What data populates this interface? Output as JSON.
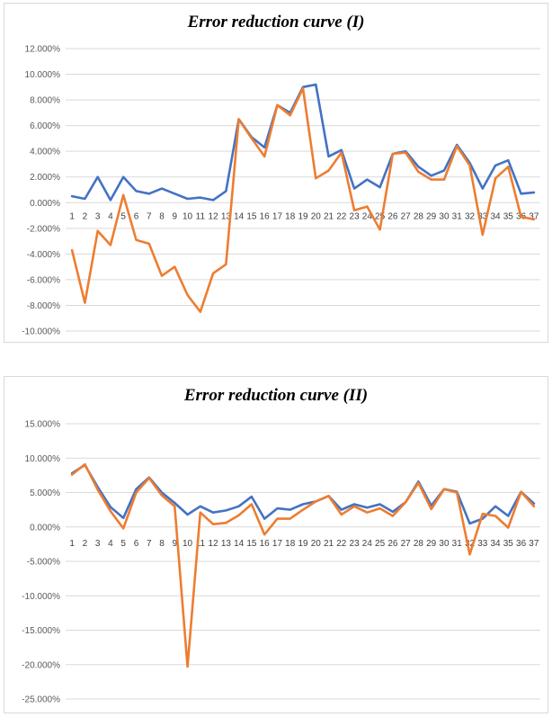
{
  "chart_data": [
    {
      "type": "line",
      "title": "Error reduction curve (I)",
      "ylim": [
        -0.1,
        0.12
      ],
      "ytick_step": 0.02,
      "ytick_labels": [
        "12.000%",
        "10.000%",
        "8.000%",
        "6.000%",
        "4.000%",
        "2.000%",
        "0.000%",
        "-2.000%",
        "-4.000%",
        "-6.000%",
        "-8.000%",
        "-10.000%"
      ],
      "categories": [
        "1",
        "2",
        "3",
        "4",
        "5",
        "6",
        "7",
        "8",
        "9",
        "10",
        "11",
        "12",
        "13",
        "14",
        "15",
        "16",
        "17",
        "18",
        "19",
        "20",
        "21",
        "22",
        "23",
        "24",
        "25",
        "26",
        "27",
        "28",
        "29",
        "30",
        "31",
        "32",
        "33",
        "34",
        "35",
        "36",
        "37"
      ],
      "grid": true,
      "legend": "none",
      "series": [
        {
          "color": "#4472C4",
          "values": [
            0.005,
            0.003,
            0.02,
            0.002,
            0.02,
            0.009,
            0.007,
            0.011,
            0.007,
            0.003,
            0.004,
            0.002,
            0.009,
            0.065,
            0.051,
            0.043,
            0.076,
            0.07,
            0.09,
            0.092,
            0.036,
            0.041,
            0.011,
            0.018,
            0.012,
            0.038,
            0.04,
            0.028,
            0.021,
            0.025,
            0.045,
            0.031,
            0.011,
            0.029,
            0.033,
            0.007,
            0.008
          ]
        },
        {
          "color": "#ED7D31",
          "values": [
            -0.037,
            -0.078,
            -0.022,
            -0.033,
            0.006,
            -0.029,
            -0.032,
            -0.057,
            -0.05,
            -0.072,
            -0.085,
            -0.055,
            -0.048,
            0.065,
            0.05,
            0.036,
            0.076,
            0.068,
            0.089,
            0.019,
            0.025,
            0.039,
            -0.006,
            -0.003,
            -0.021,
            0.038,
            0.039,
            0.024,
            0.018,
            0.018,
            0.044,
            0.029,
            -0.025,
            0.019,
            0.028,
            -0.011,
            -0.013
          ]
        }
      ]
    },
    {
      "type": "line",
      "title": "Error reduction curve (II)",
      "ylim": [
        -0.25,
        0.15
      ],
      "ytick_step": 0.05,
      "ytick_labels": [
        "15.000%",
        "10.000%",
        "5.000%",
        "0.000%",
        "-5.000%",
        "-10.000%",
        "-15.000%",
        "-20.000%",
        "-25.000%"
      ],
      "categories": [
        "1",
        "2",
        "3",
        "4",
        "5",
        "6",
        "7",
        "8",
        "9",
        "10",
        "11",
        "12",
        "13",
        "14",
        "15",
        "16",
        "17",
        "18",
        "19",
        "20",
        "21",
        "22",
        "23",
        "24",
        "25",
        "26",
        "27",
        "28",
        "29",
        "30",
        "31",
        "32",
        "33",
        "34",
        "35",
        "36",
        "37"
      ],
      "grid": true,
      "legend": "none",
      "series": [
        {
          "color": "#4472C4",
          "values": [
            0.078,
            0.09,
            0.058,
            0.029,
            0.013,
            0.055,
            0.072,
            0.05,
            0.035,
            0.018,
            0.03,
            0.021,
            0.024,
            0.03,
            0.044,
            0.012,
            0.027,
            0.025,
            0.033,
            0.037,
            0.045,
            0.025,
            0.033,
            0.028,
            0.033,
            0.022,
            0.036,
            0.066,
            0.031,
            0.055,
            0.051,
            0.005,
            0.012,
            0.03,
            0.016,
            0.051,
            0.034
          ]
        },
        {
          "color": "#ED7D31",
          "values": [
            0.076,
            0.091,
            0.054,
            0.023,
            -0.002,
            0.05,
            0.071,
            0.046,
            0.03,
            -0.203,
            0.021,
            0.004,
            0.006,
            0.017,
            0.033,
            -0.011,
            0.012,
            0.012,
            0.025,
            0.037,
            0.045,
            0.018,
            0.03,
            0.021,
            0.027,
            0.016,
            0.036,
            0.064,
            0.026,
            0.055,
            0.05,
            -0.04,
            0.019,
            0.016,
            -0.001,
            0.051,
            0.03
          ]
        }
      ]
    }
  ]
}
